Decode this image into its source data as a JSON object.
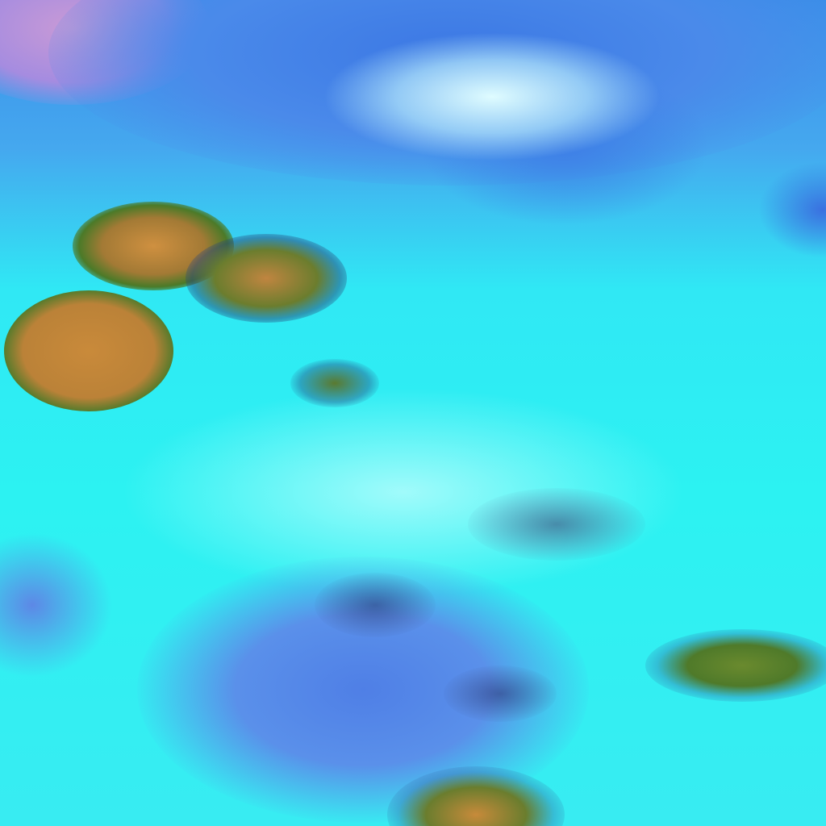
{
  "image": {
    "kind": "false-color satellite imagery",
    "colors": {
      "cloud": "#2ef2f2",
      "bright_cloud": "#c8fbff",
      "clear_sky": "#4a7fe6",
      "land": "#c98a3a",
      "vegetation": "#5f8a2a",
      "haze": "#c49ad8"
    }
  }
}
